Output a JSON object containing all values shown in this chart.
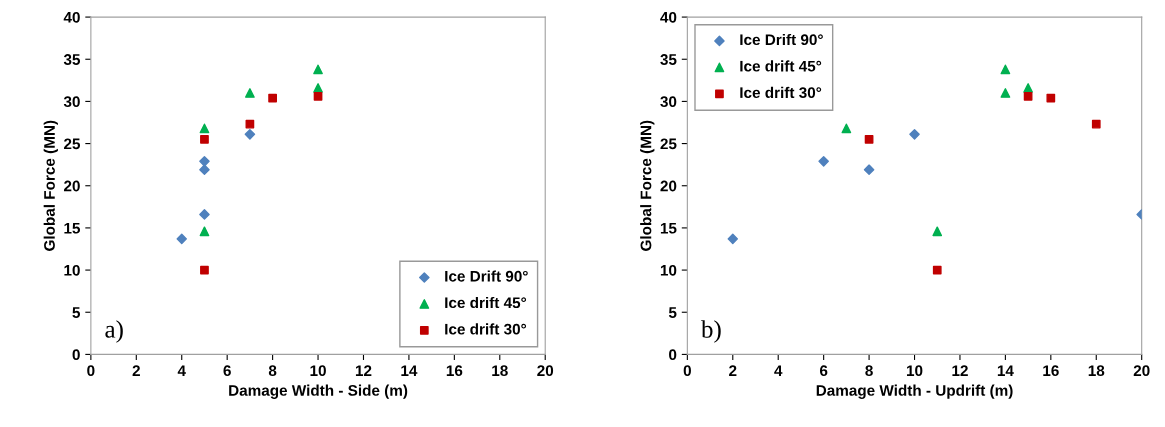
{
  "chart_data": [
    {
      "type": "scatter",
      "xlabel": "Damage Width - Side (m)",
      "ylabel": "Global Force (MN)",
      "xlim": [
        0,
        20
      ],
      "xticks": [
        0,
        2,
        4,
        6,
        8,
        10,
        12,
        14,
        16,
        18,
        20
      ],
      "ylim": [
        0,
        40
      ],
      "yticks": [
        0,
        5,
        10,
        15,
        20,
        25,
        30,
        35,
        40
      ],
      "grid": false,
      "legend": "bottom right",
      "annotations": [
        "a)"
      ],
      "series": [
        {
          "name": "Ice Drift 90°",
          "color": "#4f81bd",
          "marker": "diamond",
          "x": [
            4,
            5,
            5,
            5,
            7
          ],
          "values": [
            13.7,
            16.6,
            21.9,
            22.9,
            26.1
          ]
        },
        {
          "name": "Ice drift 45°",
          "color": "#00b050",
          "marker": "triangle",
          "x": [
            5,
            5,
            7,
            10,
            10
          ],
          "values": [
            14.6,
            26.8,
            31.0,
            31.6,
            33.8
          ]
        },
        {
          "name": "Ice drift 30°",
          "color": "#c00000",
          "marker": "square",
          "x": [
            5,
            5,
            7,
            8,
            10
          ],
          "values": [
            10.0,
            25.5,
            27.3,
            30.4,
            30.6
          ]
        }
      ]
    },
    {
      "type": "scatter",
      "xlabel": "Damage Width - Updrift (m)",
      "ylabel": "Global Force (MN)",
      "xlim": [
        0,
        20
      ],
      "xticks": [
        0,
        2,
        4,
        6,
        8,
        10,
        12,
        14,
        16,
        18,
        20
      ],
      "ylim": [
        0,
        40
      ],
      "yticks": [
        0,
        5,
        10,
        15,
        20,
        25,
        30,
        35,
        40
      ],
      "grid": false,
      "legend": "top left",
      "annotations": [
        "b)"
      ],
      "series": [
        {
          "name": "Ice Drift 90°",
          "color": "#4f81bd",
          "marker": "diamond",
          "x": [
            2,
            6,
            8,
            10,
            20
          ],
          "values": [
            13.7,
            22.9,
            21.9,
            26.1,
            16.6
          ]
        },
        {
          "name": "Ice drift 45°",
          "color": "#00b050",
          "marker": "triangle",
          "x": [
            7,
            11,
            14,
            14,
            15
          ],
          "values": [
            26.8,
            14.6,
            33.8,
            31.0,
            31.6
          ]
        },
        {
          "name": "Ice drift 30°",
          "color": "#c00000",
          "marker": "square",
          "x": [
            8,
            11,
            15,
            16,
            18
          ],
          "values": [
            25.5,
            10.0,
            30.6,
            30.4,
            27.3
          ]
        }
      ]
    }
  ]
}
